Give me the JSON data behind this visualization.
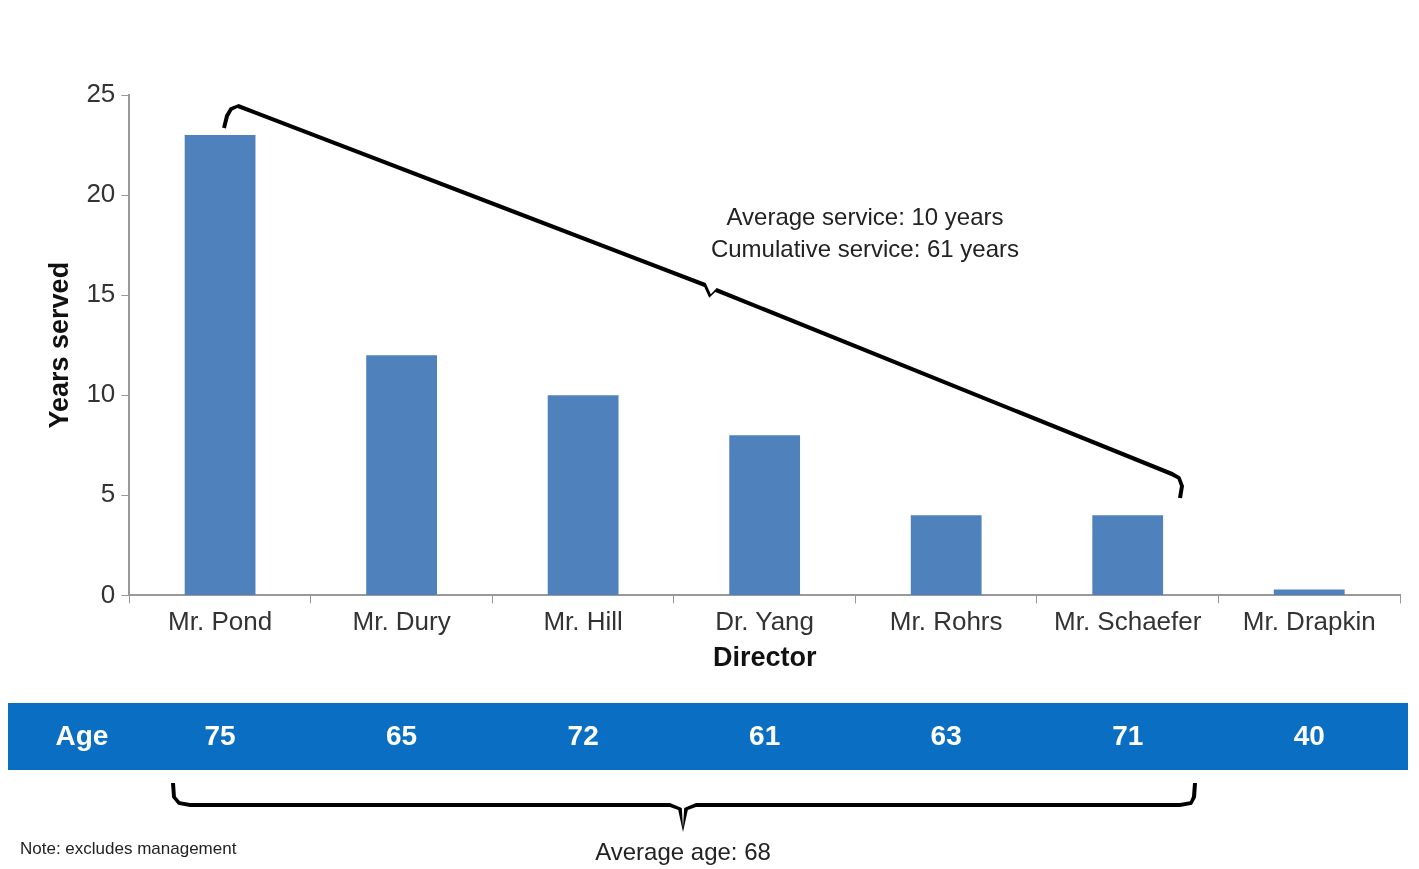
{
  "chart_data": {
    "type": "bar",
    "categories": [
      "Mr. Pond",
      "Mr. Dury",
      "Mr. Hill",
      "Dr. Yang",
      "Mr. Rohrs",
      "Mr. Schaefer",
      "Mr. Drapkin"
    ],
    "values": [
      23,
      12,
      10,
      8,
      4,
      4,
      0.3
    ],
    "color": "#4f81bd",
    "xlabel": "Director",
    "ylabel": "Years served",
    "ylim": [
      0,
      25
    ],
    "yticks": [
      0,
      5,
      10,
      15,
      20,
      25
    ],
    "grid": false,
    "legend": false,
    "annotations": [
      "Average service: 10 years",
      "Cumulative service: 61 years",
      "Age",
      "75",
      "65",
      "72",
      "61",
      "63",
      "71",
      "40",
      "Average age: 68",
      "Note: excludes management"
    ]
  }
}
